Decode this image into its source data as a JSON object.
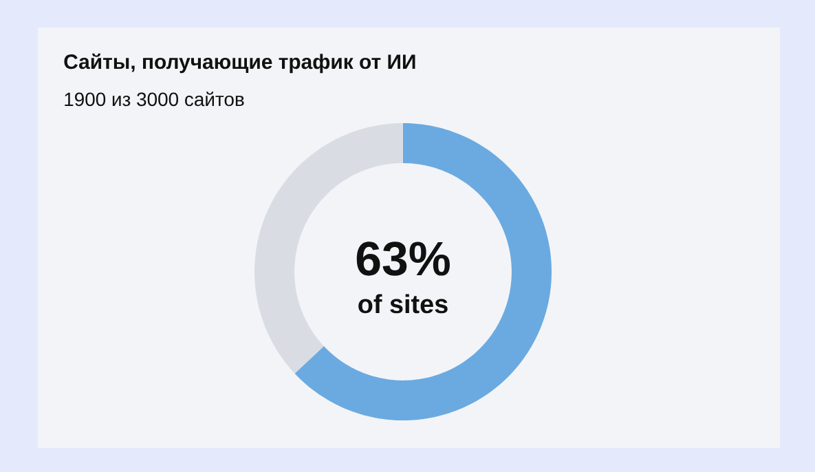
{
  "chart_data": {
    "type": "donut",
    "title": "Сайты, получающие трафик от ИИ",
    "subtitle": "1900 из 3000 сайтов",
    "categories": [
      null,
      null
    ],
    "values": [
      63,
      37
    ],
    "colors": [
      "#6aaae1",
      "#d9dde3"
    ],
    "value_labels": [
      "63%",
      null
    ],
    "annotations": [
      "of sites"
    ]
  }
}
